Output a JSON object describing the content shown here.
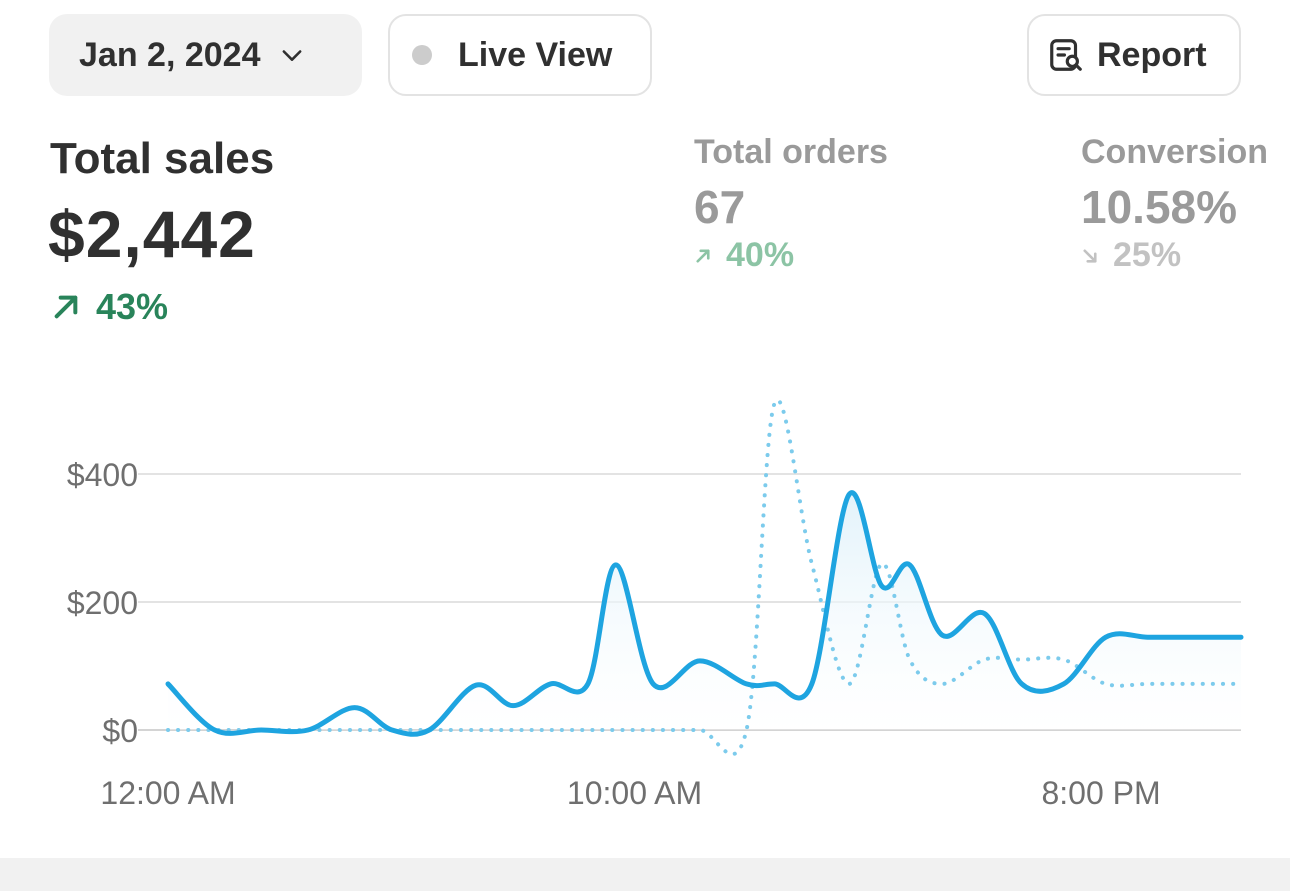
{
  "toolbar": {
    "date_label": "Jan 2, 2024",
    "live_view_label": "Live View",
    "report_label": "Report",
    "icons": {
      "date": "chevron-down-icon",
      "live": "status-dot-icon",
      "report": "report-search-icon"
    }
  },
  "metrics": {
    "total_sales": {
      "label": "Total sales",
      "value": "$2,442",
      "change": "43%",
      "direction": "up"
    },
    "total_orders": {
      "label": "Total orders",
      "value": "67",
      "change": "40%",
      "direction": "up"
    },
    "conversion": {
      "label": "Conversion",
      "value": "10.58%",
      "change": "25%",
      "direction": "down"
    }
  },
  "colors": {
    "primary_line": "#1ea4e0",
    "comparison_line": "#7ccbec",
    "positive": "#29845a",
    "grid": "#e3e3e3"
  },
  "chart_data": {
    "type": "line",
    "ylim": [
      0,
      400
    ],
    "y_ticks": [
      "$0",
      "$200",
      "$400"
    ],
    "x_ticks": [
      "12:00 AM",
      "10:00 AM",
      "8:00 PM"
    ],
    "grid": true,
    "x": [
      0.0,
      1.0,
      2.0,
      3.0,
      4.0,
      4.8,
      5.6,
      6.6,
      7.4,
      8.2,
      9.0,
      9.6,
      10.4,
      11.4,
      12.4,
      13.0,
      13.8,
      14.6,
      15.3,
      15.9,
      16.6,
      17.5,
      18.3,
      19.2,
      20.1,
      21.0,
      21.9,
      22.8,
      23.0
    ],
    "series": [
      {
        "values": [
          72,
          0,
          0,
          0,
          35,
          0,
          0,
          70,
          38,
          72,
          72,
          258,
          72,
          108,
          72,
          72,
          72,
          368,
          225,
          258,
          148,
          182,
          72,
          72,
          145,
          145,
          145,
          145,
          145
        ]
      },
      {
        "values": [
          0,
          0,
          0,
          0,
          0,
          0,
          0,
          0,
          0,
          0,
          0,
          0,
          0,
          0,
          0,
          510,
          260,
          72,
          260,
          110,
          72,
          110,
          110,
          110,
          72,
          72,
          72,
          72,
          72
        ]
      }
    ]
  }
}
